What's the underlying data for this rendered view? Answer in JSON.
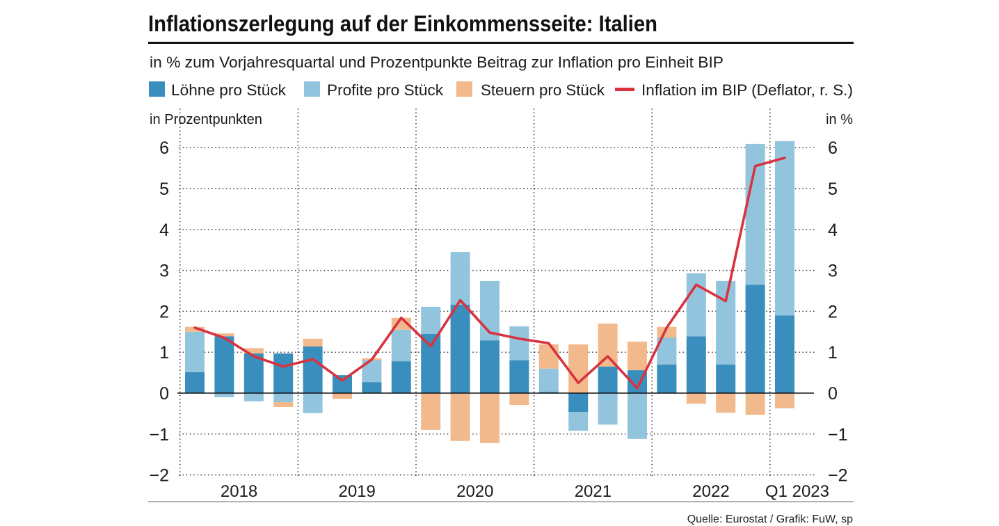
{
  "chart_data": {
    "type": "bar",
    "stacked": true,
    "grid": true,
    "title": "Inflationszerlegung auf der Einkommensseite: Italien",
    "subtitle": "in % zum Vorjahresquartal und Prozentpunkte Beitrag zur Inflation pro Einheit BIP",
    "ylabel_left": "in Prozentpunkten",
    "ylabel_right": "in %",
    "ylim": [
      -2,
      6
    ],
    "y_tick_labels": [
      "6",
      "5",
      "4",
      "3",
      "2",
      "1",
      "0",
      "−1",
      "−2"
    ],
    "x_labels": [
      "2018",
      "2019",
      "2020",
      "2021",
      "2022",
      "Q1 2023"
    ],
    "series": [
      {
        "name": "Löhne pro Stück",
        "color": "#3a8ebd",
        "values": [
          0.51,
          1.39,
          0.97,
          0.97,
          1.14,
          0.44,
          0.27,
          0.78,
          1.45,
          2.16,
          1.29,
          0.8,
          0.03,
          -0.46,
          0.65,
          0.56,
          0.7,
          1.39,
          0.7,
          2.65,
          1.9
        ]
      },
      {
        "name": "Profite pro Stück",
        "color": "#92c4dd",
        "values": [
          0.99,
          -0.1,
          -0.2,
          -0.22,
          -0.49,
          0,
          0.53,
          0.77,
          0.66,
          1.29,
          1.45,
          0.83,
          0.57,
          -0.46,
          -0.77,
          -1.12,
          0.66,
          1.54,
          2.04,
          3.44,
          4.26
        ]
      },
      {
        "name": "Steuern pro Stück",
        "color": "#f2ba8c",
        "values": [
          0.12,
          0.07,
          0.13,
          -0.12,
          0.19,
          -0.14,
          0.05,
          0.29,
          -0.9,
          -1.17,
          -1.22,
          -0.29,
          0.59,
          1.19,
          1.05,
          0.7,
          0.26,
          -0.26,
          -0.48,
          -0.53,
          -0.37
        ]
      }
    ],
    "line": {
      "name": "Inflation im BIP (Deflator, r. S.)",
      "color": "#d8333e",
      "values": [
        1.6,
        1.35,
        0.9,
        0.65,
        0.83,
        0.31,
        0.82,
        1.84,
        1.15,
        2.27,
        1.48,
        1.33,
        1.22,
        0.25,
        0.9,
        0.12,
        1.6,
        2.65,
        2.25,
        5.55,
        5.75
      ]
    },
    "source": "Quelle: Eurostat / Grafik: FuW, sp"
  }
}
